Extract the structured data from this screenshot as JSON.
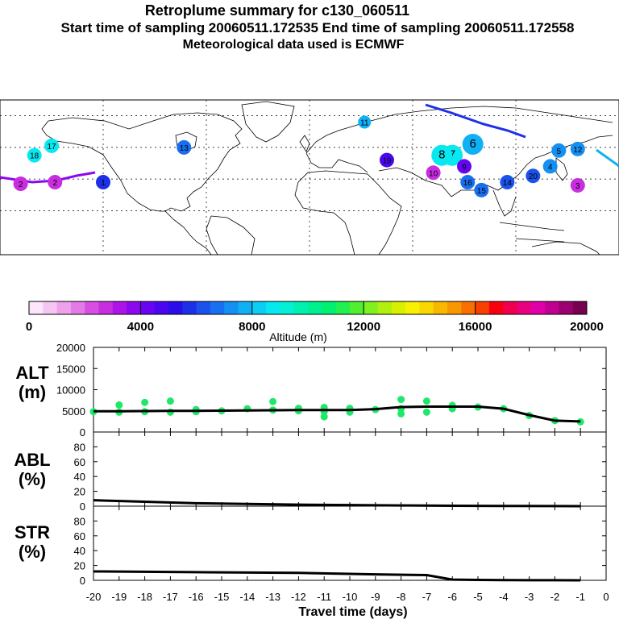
{
  "header": {
    "title": "Retroplume summary for c130_060511",
    "sampling": "Start time of sampling 20060511.172535     End time of sampling 20060511.172558",
    "met": "Meteorological data used is ECMWF"
  },
  "colorbar": {
    "label": "Altitude (m)",
    "ticks": [
      "0",
      "4000",
      "8000",
      "12000",
      "16000",
      "20000"
    ],
    "colors": [
      "#fde6fb",
      "#f6c6f3",
      "#eea2ec",
      "#e27be6",
      "#d64fe2",
      "#c82ee0",
      "#ac14e8",
      "#8c08ee",
      "#6804f2",
      "#4a06ee",
      "#2c0ce8",
      "#1c30e8",
      "#1c52ec",
      "#1870f0",
      "#1490f2",
      "#10b0f4",
      "#0ccef4",
      "#08e8f0",
      "#04f0d4",
      "#00f0b0",
      "#00f090",
      "#00f070",
      "#20f050",
      "#50f030",
      "#80f020",
      "#b0f010",
      "#d8f000",
      "#f8f000",
      "#f8d800",
      "#f8b800",
      "#f89800",
      "#f87000",
      "#f84000",
      "#f80010",
      "#f0004c",
      "#e80080",
      "#e000a8",
      "#c00090",
      "#9c0070",
      "#780050"
    ]
  },
  "chart_data": [
    {
      "type": "scatter",
      "name": "retroplume-map",
      "title": "",
      "xlabel": "",
      "ylabel": "",
      "points": [
        {
          "label": "1",
          "lon": -120,
          "lat": 38,
          "color": "#1c30e8"
        },
        {
          "label": "2",
          "lon": -168,
          "lat": 37,
          "color": "#c82ee0"
        },
        {
          "label": "2",
          "lon": -148,
          "lat": 38,
          "color": "#c82ee0"
        },
        {
          "label": "3",
          "lon": 156,
          "lat": 36,
          "color": "#c82ee0"
        },
        {
          "label": "4",
          "lon": 140,
          "lat": 48,
          "color": "#1490f2"
        },
        {
          "label": "5",
          "lon": 145,
          "lat": 58,
          "color": "#1490f2"
        },
        {
          "label": "6",
          "lon": 95,
          "lat": 62,
          "color": "#10b0f4"
        },
        {
          "label": "7",
          "lon": 83,
          "lat": 55,
          "color": "#08e8f0"
        },
        {
          "label": "8",
          "lon": 77,
          "lat": 55,
          "color": "#08e8f0"
        },
        {
          "label": "9",
          "lon": 90,
          "lat": 48,
          "color": "#6804f2"
        },
        {
          "label": "10",
          "lon": 72,
          "lat": 44,
          "color": "#c82ee0"
        },
        {
          "label": "11",
          "lon": 32,
          "lat": 76,
          "color": "#10b0f4"
        },
        {
          "label": "12",
          "lon": 156,
          "lat": 59,
          "color": "#1490f2"
        },
        {
          "label": "13",
          "lon": -73,
          "lat": 60,
          "color": "#1870f0"
        },
        {
          "label": "14",
          "lon": 115,
          "lat": 38,
          "color": "#1c52ec"
        },
        {
          "label": "15",
          "lon": 100,
          "lat": 33,
          "color": "#1870f0"
        },
        {
          "label": "16",
          "lon": 92,
          "lat": 38,
          "color": "#1870f0"
        },
        {
          "label": "17",
          "lon": -150,
          "lat": 61,
          "color": "#08e8f0"
        },
        {
          "label": "18",
          "lon": -160,
          "lat": 55,
          "color": "#08e8f0"
        },
        {
          "label": "19",
          "lon": 45,
          "lat": 52,
          "color": "#4a06ee"
        },
        {
          "label": "20",
          "lon": 130,
          "lat": 42,
          "color": "#1c52ec"
        }
      ]
    },
    {
      "type": "scatter",
      "name": "altitude",
      "ylabel": "ALT (m)",
      "xlabel": "Travel time (days)",
      "xlim": [
        -20,
        0
      ],
      "ylim": [
        0,
        20000
      ],
      "yticks": [
        "0",
        "5000",
        "10000",
        "15000",
        "20000"
      ],
      "xticks": [
        "-20",
        "-19",
        "-18",
        "-17",
        "-16",
        "-15",
        "-14",
        "-13",
        "-12",
        "-11",
        "-10",
        "-9",
        "-8",
        "-7",
        "-6",
        "-5",
        "-4",
        "-3",
        "-2",
        "-1",
        "0"
      ],
      "mean_line": {
        "x": [
          -20,
          -19,
          -18,
          -17,
          -16,
          -15,
          -14,
          -13,
          -12,
          -11,
          -10,
          -9,
          -8,
          -7,
          -6,
          -5,
          -4,
          -3,
          -2,
          -1
        ],
        "y": [
          4900,
          4900,
          4950,
          5000,
          5000,
          5050,
          5100,
          5150,
          5200,
          5200,
          5200,
          5400,
          5900,
          6000,
          6000,
          6000,
          5500,
          4000,
          2700,
          2500
        ]
      },
      "points": {
        "x": [
          -20,
          -19,
          -19,
          -18,
          -18,
          -17,
          -17,
          -16,
          -16,
          -15,
          -14,
          -13,
          -13,
          -12,
          -12,
          -11,
          -11,
          -11,
          -10,
          -10,
          -9,
          -8,
          -8,
          -8,
          -7,
          -7,
          -6,
          -6,
          -5,
          -4,
          -3,
          -2,
          -1
        ],
        "y": [
          4800,
          4700,
          6400,
          4800,
          7000,
          4700,
          7300,
          4800,
          5300,
          5000,
          5500,
          5200,
          7200,
          5000,
          5600,
          5800,
          4800,
          3600,
          5600,
          4700,
          5300,
          7700,
          5500,
          4300,
          7300,
          4700,
          6300,
          5500,
          5900,
          5500,
          3900,
          2700,
          2400
        ]
      }
    },
    {
      "type": "line",
      "name": "abl-fraction",
      "ylabel": "ABL (%)",
      "ylim": [
        0,
        100
      ],
      "yticks": [
        "0",
        "20",
        "40",
        "60",
        "80"
      ],
      "x": [
        -20,
        -18,
        -16,
        -14,
        -12,
        -10,
        -8,
        -6,
        -4,
        -2,
        -1
      ],
      "y": [
        8,
        6,
        4,
        3,
        2,
        1.5,
        1,
        0.5,
        0.3,
        0.1,
        0
      ]
    },
    {
      "type": "line",
      "name": "stratosphere-fraction",
      "ylabel": "STR (%)",
      "ylim": [
        0,
        100
      ],
      "yticks": [
        "0",
        "20",
        "40",
        "60",
        "80"
      ],
      "x": [
        -20,
        -16,
        -12,
        -9,
        -7,
        -6,
        -5,
        -4,
        -3,
        -2,
        -1
      ],
      "y": [
        12,
        11,
        10,
        8,
        7,
        1,
        0.5,
        0.3,
        0.2,
        0.1,
        0
      ]
    }
  ]
}
